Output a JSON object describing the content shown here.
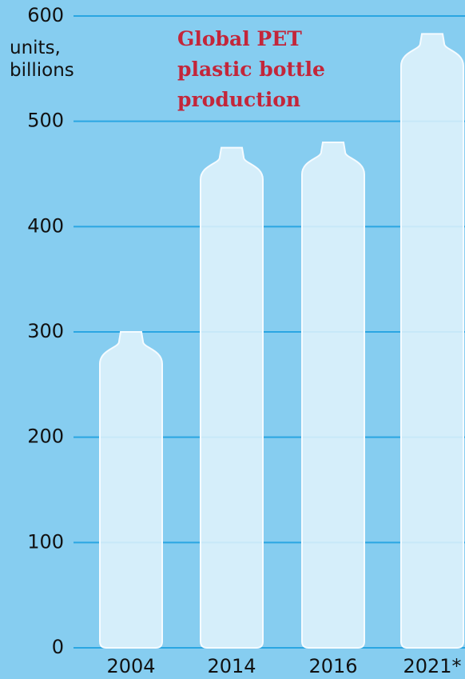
{
  "chart_data": {
    "type": "bar",
    "title": "Global PET plastic bottle production",
    "y_label": "units, billions",
    "categories": [
      "2004",
      "2014",
      "2016",
      "2021*"
    ],
    "values": [
      300,
      475,
      480,
      583
    ],
    "color": "#e3f3fc",
    "ylim": [
      0,
      600
    ],
    "yticks": [
      0,
      100,
      200,
      300,
      400,
      500,
      600
    ],
    "grid": true,
    "grid_color": "#2aa6e2"
  }
}
